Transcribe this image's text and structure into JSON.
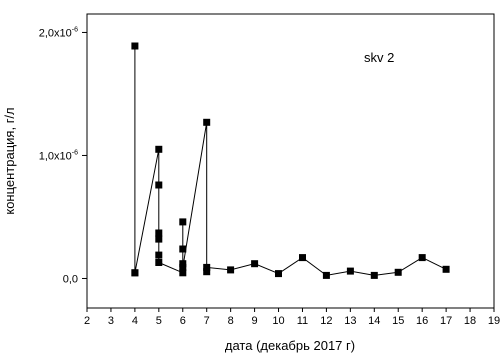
{
  "chart_data": {
    "type": "line",
    "title": "",
    "annotation": "skv 2",
    "xlabel": "дата (декабрь 2017 г)",
    "ylabel": "концентрация, г/л",
    "xlim": [
      2,
      19
    ],
    "ylim": [
      -2.4e-07,
      2.15e-06
    ],
    "x_ticks": [
      2,
      3,
      4,
      5,
      6,
      7,
      8,
      9,
      10,
      11,
      12,
      13,
      14,
      15,
      16,
      17,
      18,
      19
    ],
    "y_ticks": [
      {
        "value": 0,
        "label_main": "0,0",
        "label_exp": ""
      },
      {
        "value": 1e-06,
        "label_main": "1,0x10",
        "label_exp": "-6"
      },
      {
        "value": 2e-06,
        "label_main": "2,0x10",
        "label_exp": "-6"
      }
    ],
    "grid": false,
    "marker": "square",
    "series": [
      {
        "points": [
          [
            4,
            4.6e-08
          ],
          [
            4,
            1.89e-06
          ],
          [
            4,
            4.6e-08
          ],
          [
            5,
            1.05e-06
          ],
          [
            5,
            7.6e-07
          ],
          [
            5,
            3.7e-07
          ],
          [
            5,
            3.2e-07
          ],
          [
            5,
            1.9e-07
          ],
          [
            5,
            1.3e-07
          ],
          [
            6,
            4.6e-08
          ],
          [
            6,
            1.2e-07
          ],
          [
            6,
            2.4e-07
          ],
          [
            6,
            4.6e-07
          ],
          [
            6,
            9e-08
          ],
          [
            7,
            1.27e-06
          ],
          [
            7,
            5.5e-08
          ],
          [
            7,
            9e-08
          ],
          [
            8,
            7e-08
          ],
          [
            9,
            1.2e-07
          ],
          [
            10,
            4e-08
          ],
          [
            11,
            1.7e-07
          ],
          [
            12,
            2.5e-08
          ],
          [
            13,
            6e-08
          ],
          [
            14,
            2.5e-08
          ],
          [
            15,
            5e-08
          ],
          [
            16,
            1.7e-07
          ],
          [
            17,
            7.5e-08
          ]
        ]
      }
    ]
  }
}
